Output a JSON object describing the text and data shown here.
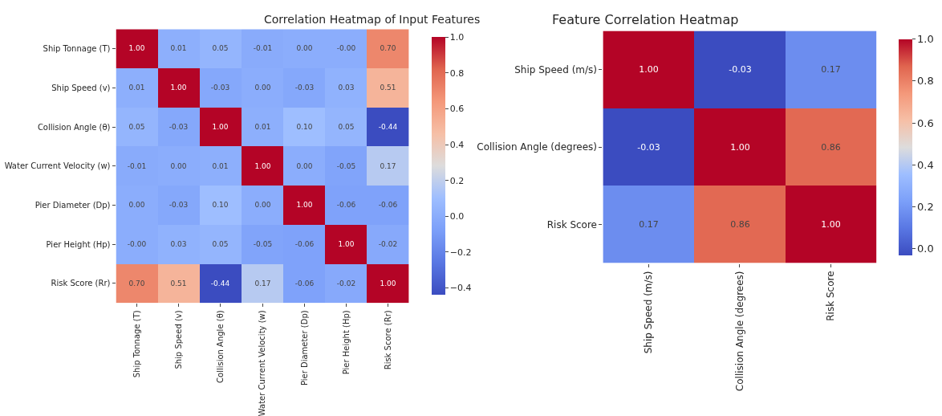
{
  "chart_data": [
    {
      "type": "heatmap",
      "title": "Correlation Heatmap of Input Features",
      "categories": [
        "Ship Tonnage (T)",
        "Ship Speed (v)",
        "Collision Angle (θ)",
        "Water Current Velocity (w)",
        "Pier Diameter (Dp)",
        "Pier Height (Hp)",
        "Risk Score (Rr)"
      ],
      "y_categories": [
        "Ship Tonnage (T)",
        "Ship Speed (v)",
        "Collision Angle (θ)",
        "Water Current Velocity (w)",
        "Pier Diameter (Dp)",
        "Pier Height (Hp)",
        "Risk Score (Rr)"
      ],
      "cells": [
        [
          1.0,
          0.01,
          0.05,
          -0.01,
          0.0,
          0.0,
          0.7
        ],
        [
          0.01,
          1.0,
          -0.03,
          0.0,
          -0.03,
          0.03,
          0.51
        ],
        [
          0.05,
          -0.03,
          1.0,
          0.01,
          0.1,
          0.05,
          -0.44
        ],
        [
          -0.01,
          0.0,
          0.01,
          1.0,
          0.0,
          -0.05,
          0.17
        ],
        [
          0.0,
          -0.03,
          0.1,
          0.0,
          1.0,
          -0.06,
          -0.06
        ],
        [
          0.0,
          0.03,
          0.05,
          -0.05,
          -0.06,
          1.0,
          -0.02
        ],
        [
          0.7,
          0.51,
          -0.44,
          0.17,
          -0.06,
          -0.02,
          1.0
        ]
      ],
      "cell_labels": [
        [
          "1.00",
          "0.01",
          "0.05",
          "-0.01",
          "0.00",
          "-0.00",
          "0.70"
        ],
        [
          "0.01",
          "1.00",
          "-0.03",
          "0.00",
          "-0.03",
          "0.03",
          "0.51"
        ],
        [
          "0.05",
          "-0.03",
          "1.00",
          "0.01",
          "0.10",
          "0.05",
          "-0.44"
        ],
        [
          "-0.01",
          "0.00",
          "0.01",
          "1.00",
          "0.00",
          "-0.05",
          "0.17"
        ],
        [
          "0.00",
          "-0.03",
          "0.10",
          "0.00",
          "1.00",
          "-0.06",
          "-0.06"
        ],
        [
          "-0.00",
          "0.03",
          "0.05",
          "-0.05",
          "-0.06",
          "1.00",
          "-0.02"
        ],
        [
          "0.70",
          "0.51",
          "-0.44",
          "0.17",
          "-0.06",
          "-0.02",
          "1.00"
        ]
      ],
      "clim": [
        -0.44,
        1.0
      ],
      "cticks": [
        {
          "value": -0.4,
          "label": "−0.4"
        },
        {
          "value": -0.2,
          "label": "−0.2"
        },
        {
          "value": 0,
          "label": "0.0"
        },
        0.2,
        0.4,
        0.6,
        0.8,
        {
          "value": 1,
          "label": "1.0"
        }
      ]
    },
    {
      "type": "heatmap",
      "title": "Feature Correlation Heatmap",
      "categories": [
        "Ship Speed (m/s)",
        "Collision Angle (degrees)",
        "Risk Score"
      ],
      "y_categories": [
        "Ship Speed (m/s)",
        "Collision Angle (degrees)",
        "Risk Score"
      ],
      "cells": [
        [
          1.0,
          -0.03,
          0.17
        ],
        [
          -0.03,
          1.0,
          0.86
        ],
        [
          0.17,
          0.86,
          1.0
        ]
      ],
      "cell_labels": [
        [
          "1.00",
          "-0.03",
          "0.17"
        ],
        [
          "-0.03",
          "1.00",
          "0.86"
        ],
        [
          "0.17",
          "0.86",
          "1.00"
        ]
      ],
      "clim": [
        -0.03,
        1.0
      ],
      "cticks": [
        {
          "value": 0,
          "label": "0.0"
        },
        0.2,
        0.4,
        0.6,
        0.8,
        {
          "value": 1,
          "label": "1.0"
        }
      ]
    }
  ]
}
